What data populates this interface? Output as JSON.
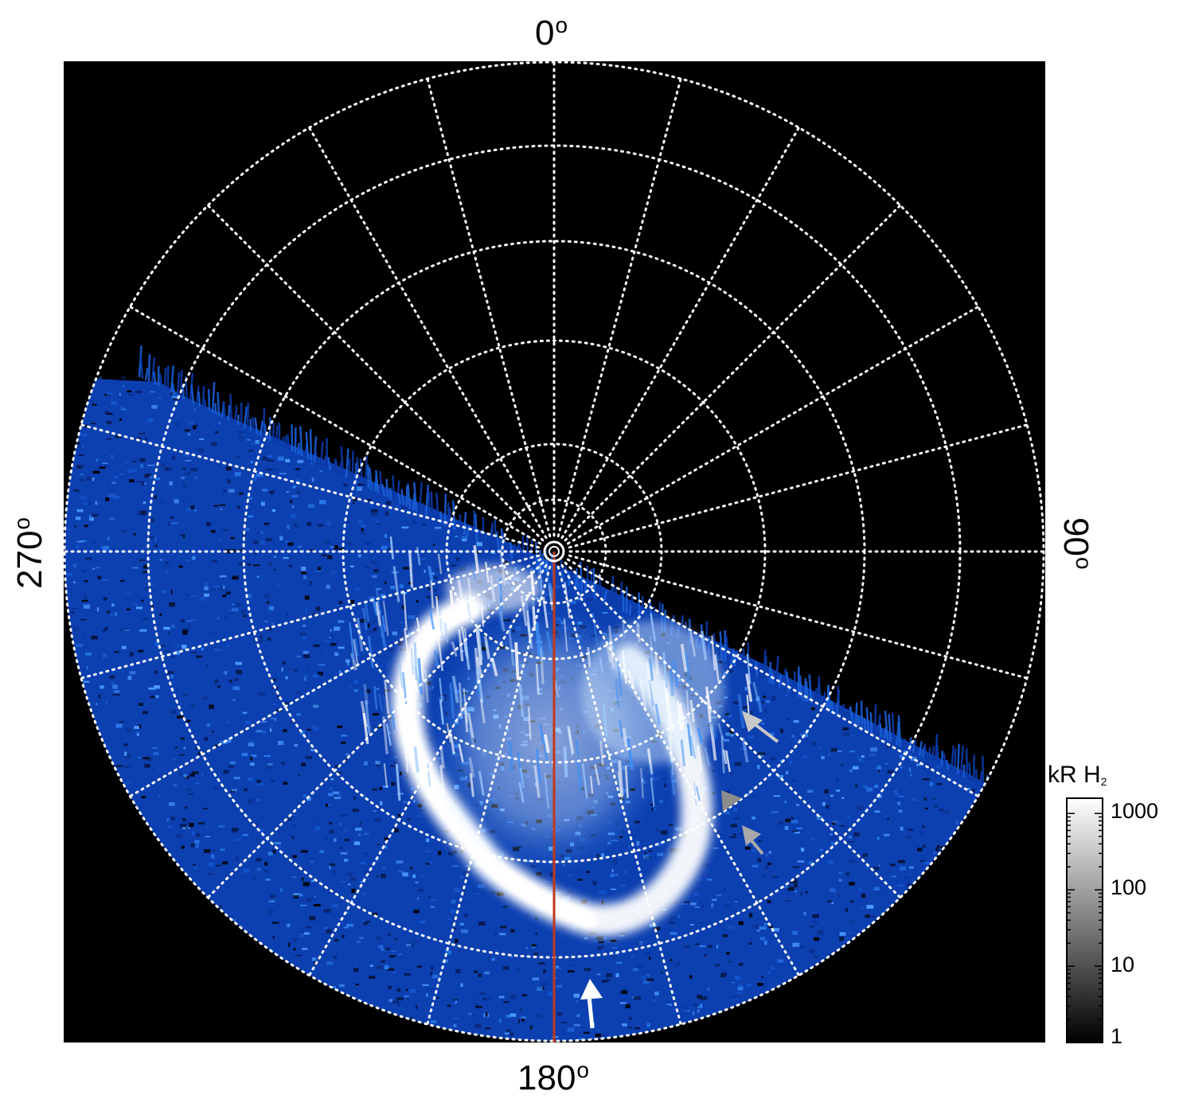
{
  "figure": {
    "labels": {
      "top": "0",
      "right": "90",
      "bottom": "180",
      "left": "270",
      "degree_symbol": "o"
    },
    "colorbar": {
      "title": "kR H",
      "title_subscript": "2",
      "scale": "log",
      "range": [
        1,
        1000
      ],
      "ticks": [
        "1000",
        "100",
        "10",
        "1"
      ],
      "colors": [
        "#000000",
        "#ffffff"
      ]
    },
    "colors": {
      "background": "#000000",
      "aurora_dim": "#0a3fb8",
      "aurora_mid": "#2f86f0",
      "aurora_bright": "#ffffff",
      "meridian_line": "#c0391b",
      "grid": "#ffffff",
      "arrow_white": "#ffffff",
      "arrow_gray": "#a0a0a0"
    },
    "icons": {
      "pole_marker": "pole-circle-icon",
      "arrows": [
        "white-arrow-icon",
        "gray-arrow-icon",
        "gray-arrow-icon",
        "gray-arrow-icon"
      ]
    }
  }
}
